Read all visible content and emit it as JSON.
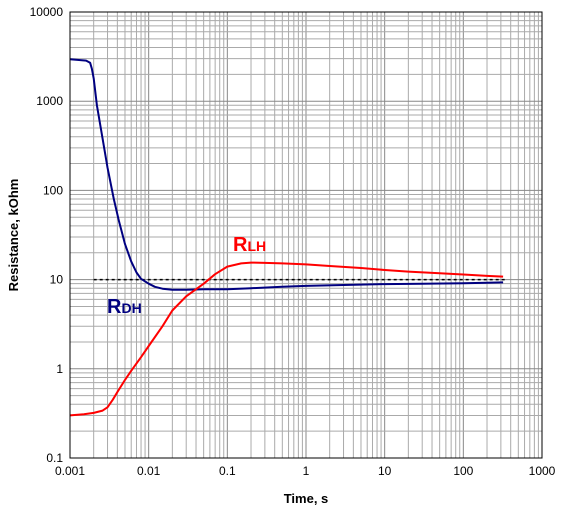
{
  "chart_data": {
    "type": "line",
    "xlabel": "Time, s",
    "ylabel": "Resistance, kOhm",
    "x_scale": "log",
    "y_scale": "log",
    "xlim": [
      0.001,
      1000
    ],
    "ylim": [
      0.1,
      10000
    ],
    "grid": true,
    "x_ticks": [
      "0.001",
      "0.01",
      "0.1",
      "1",
      "10",
      "100",
      "1000"
    ],
    "y_ticks": [
      "0.1",
      "1",
      "10",
      "100",
      "1000",
      "10000"
    ],
    "reference_line": {
      "y": 10,
      "style": "dashed",
      "color": "#000000"
    },
    "series": [
      {
        "name": "RDH",
        "label_main": "R",
        "label_sub": "DH",
        "color": "#000080",
        "points": [
          [
            0.001,
            2950
          ],
          [
            0.0013,
            2900
          ],
          [
            0.0016,
            2850
          ],
          [
            0.0018,
            2700
          ],
          [
            0.0019,
            2300
          ],
          [
            0.002,
            1800
          ],
          [
            0.0022,
            900
          ],
          [
            0.0026,
            380
          ],
          [
            0.003,
            180
          ],
          [
            0.0036,
            80
          ],
          [
            0.0042,
            45
          ],
          [
            0.005,
            25
          ],
          [
            0.006,
            16
          ],
          [
            0.007,
            12
          ],
          [
            0.008,
            10.2
          ],
          [
            0.01,
            9.0
          ],
          [
            0.012,
            8.3
          ],
          [
            0.015,
            7.9
          ],
          [
            0.02,
            7.7
          ],
          [
            0.03,
            7.7
          ],
          [
            0.05,
            7.8
          ],
          [
            0.1,
            7.8
          ],
          [
            0.2,
            8.0
          ],
          [
            0.5,
            8.3
          ],
          [
            1,
            8.5
          ],
          [
            3,
            8.7
          ],
          [
            10,
            8.9
          ],
          [
            30,
            9.0
          ],
          [
            100,
            9.1
          ],
          [
            200,
            9.2
          ],
          [
            320,
            9.3
          ]
        ]
      },
      {
        "name": "RLH",
        "label_main": "R",
        "label_sub": "LH",
        "color": "#ff0000",
        "points": [
          [
            0.001,
            0.3
          ],
          [
            0.0015,
            0.31
          ],
          [
            0.002,
            0.32
          ],
          [
            0.0026,
            0.34
          ],
          [
            0.003,
            0.37
          ],
          [
            0.0035,
            0.45
          ],
          [
            0.004,
            0.55
          ],
          [
            0.005,
            0.75
          ],
          [
            0.006,
            0.95
          ],
          [
            0.008,
            1.35
          ],
          [
            0.01,
            1.8
          ],
          [
            0.015,
            3.0
          ],
          [
            0.02,
            4.5
          ],
          [
            0.03,
            6.5
          ],
          [
            0.05,
            9.0
          ],
          [
            0.07,
            11.5
          ],
          [
            0.1,
            14.0
          ],
          [
            0.15,
            15.2
          ],
          [
            0.2,
            15.5
          ],
          [
            0.3,
            15.4
          ],
          [
            0.5,
            15.2
          ],
          [
            1,
            14.8
          ],
          [
            2,
            14.2
          ],
          [
            5,
            13.5
          ],
          [
            10,
            12.8
          ],
          [
            20,
            12.3
          ],
          [
            50,
            11.8
          ],
          [
            100,
            11.4
          ],
          [
            200,
            11.0
          ],
          [
            320,
            10.8
          ]
        ]
      }
    ]
  }
}
